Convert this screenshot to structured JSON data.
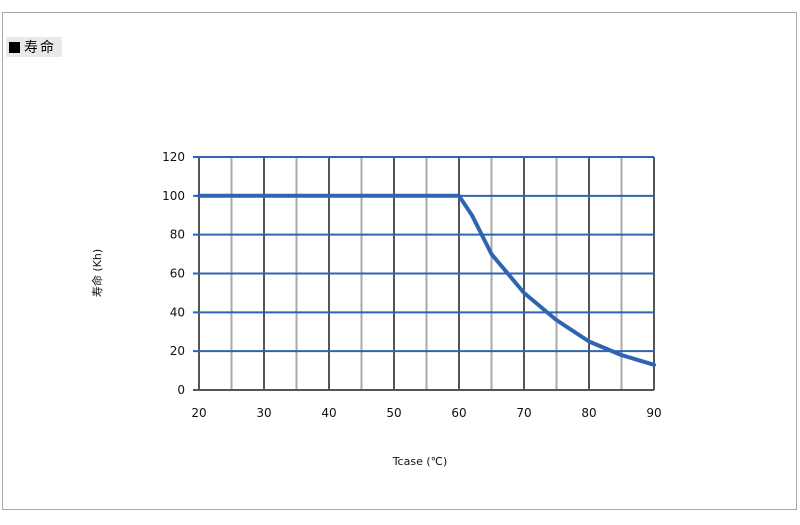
{
  "section": {
    "title": "寿命"
  },
  "chart_data": {
    "type": "line",
    "title": "",
    "xlabel": "Tcase (℃)",
    "ylabel": "寿命 (Kh)",
    "xlim": [
      20,
      90
    ],
    "ylim": [
      0,
      120
    ],
    "x_ticks": [
      20,
      30,
      40,
      50,
      60,
      70,
      80,
      90
    ],
    "y_ticks": [
      0,
      20,
      40,
      60,
      80,
      100,
      120
    ],
    "x_minor_step": 5,
    "grid": true,
    "series": [
      {
        "x": [
          20,
          60,
          62,
          65,
          70,
          75,
          80,
          85,
          90
        ],
        "y": [
          100,
          100,
          90,
          70,
          50,
          36,
          25,
          18,
          13
        ]
      }
    ],
    "colors": {
      "line": "#2f64b3",
      "major_vertical_grid": "#555555",
      "minor_vertical_grid": "#a9a9a9",
      "horizontal_grid": "#2f64b3"
    }
  }
}
